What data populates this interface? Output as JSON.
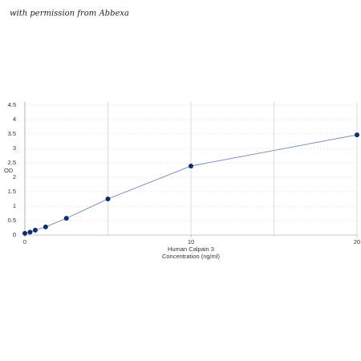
{
  "watermark": "with permission from Abbexa",
  "chart_data": {
    "type": "line",
    "xlabel": [
      "Human Calpain 3",
      "Concentration (ng/ml)"
    ],
    "ylabel": "OD",
    "x": [
      0,
      0.3125,
      0.625,
      1.25,
      2.5,
      5,
      10,
      20
    ],
    "series": [
      {
        "color": "#0d2f6e",
        "values": [
          0.06,
          0.1,
          0.17,
          0.28,
          0.58,
          1.25,
          2.39,
          3.47
        ]
      }
    ],
    "xlim": [
      0,
      20
    ],
    "ylim": [
      0,
      4.5
    ],
    "xticks": [
      0,
      10,
      20
    ],
    "xgrid": [
      0,
      5,
      10,
      15,
      20
    ],
    "yticks": [
      0,
      0.5,
      1,
      1.5,
      2,
      2.5,
      3,
      3.5,
      4,
      4.5
    ],
    "grid": true
  }
}
